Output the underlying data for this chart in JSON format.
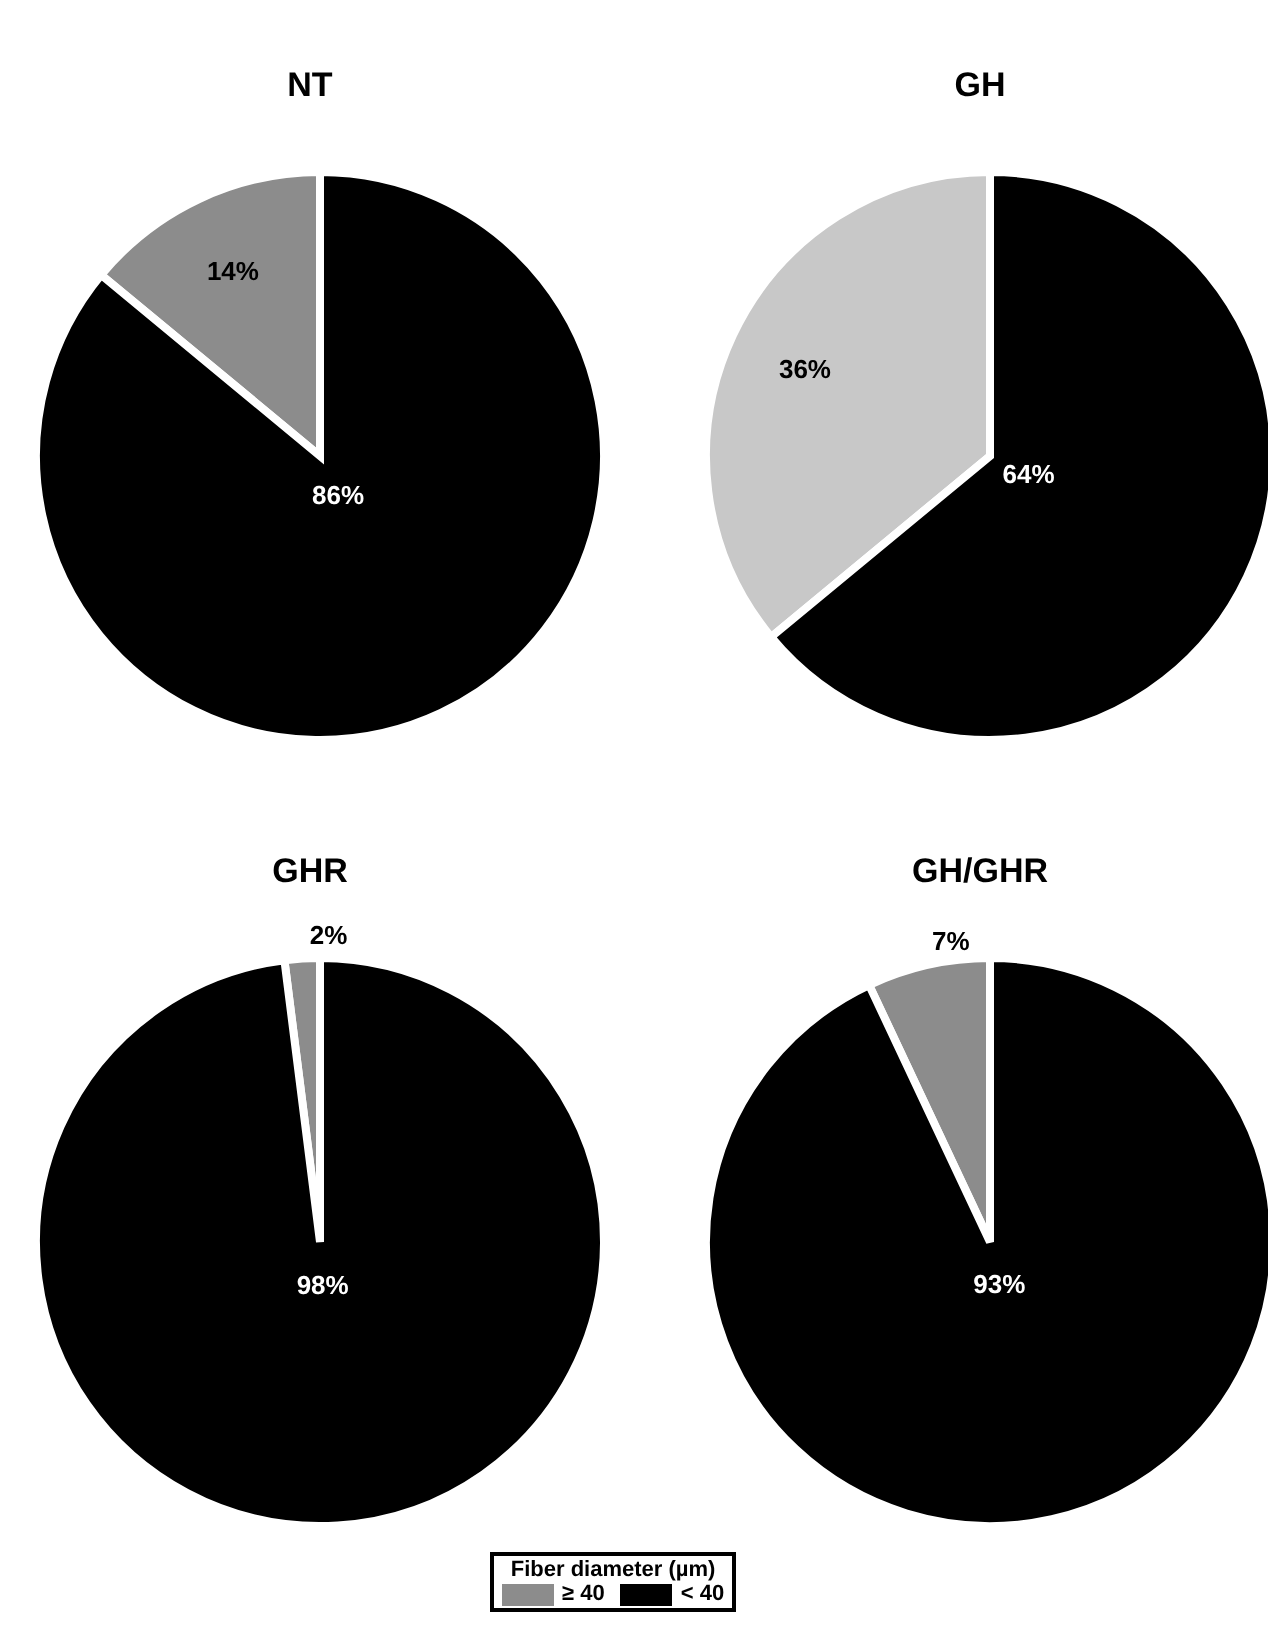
{
  "chart_data": [
    {
      "type": "pie",
      "title": "NT",
      "categories": [
        null,
        null
      ],
      "values": [
        14,
        86
      ],
      "colors": [
        "#8c8c8c",
        "#000000"
      ],
      "value_labels": [
        "14%",
        "86%"
      ],
      "legend": false
    },
    {
      "type": "pie",
      "title": "GH",
      "categories": [
        null,
        null
      ],
      "values": [
        36,
        64
      ],
      "colors": [
        "#c8c8c8",
        "#000000"
      ],
      "value_labels": [
        "36%",
        "64%"
      ],
      "legend": false
    },
    {
      "type": "pie",
      "title": "GHR",
      "categories": [
        null,
        null
      ],
      "values": [
        2,
        98
      ],
      "colors": [
        "#8c8c8c",
        "#000000"
      ],
      "value_labels": [
        "2%",
        "98%"
      ],
      "legend": false
    },
    {
      "type": "pie",
      "title": "GH/GHR",
      "categories": [
        "≥ 40",
        "< 40"
      ],
      "values": [
        7,
        93
      ],
      "colors": [
        "#8c8c8c",
        "#000000"
      ],
      "value_labels": [
        "7%",
        "93%"
      ],
      "legend": "bottom",
      "legend_title": "Fiber diameter (µm)"
    }
  ]
}
